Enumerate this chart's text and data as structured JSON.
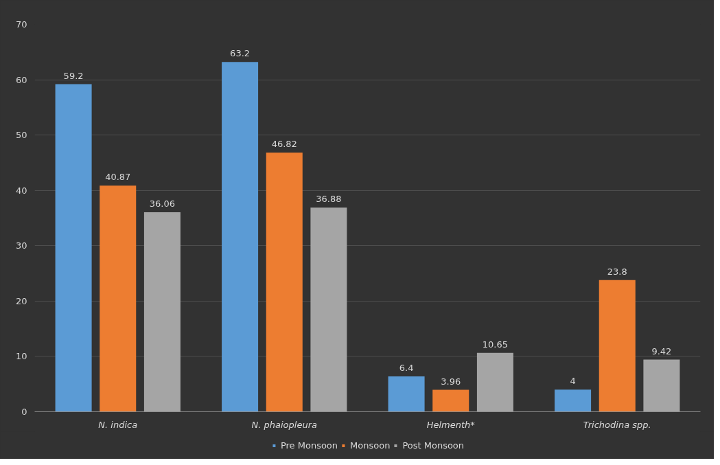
{
  "chart_data": {
    "type": "bar",
    "categories": [
      "N. indica",
      "N. phaiopleura",
      "Helmenth*",
      "Trichodina spp."
    ],
    "series": [
      {
        "name": "Pre Monsoon",
        "color": "#5b9bd5",
        "values": [
          59.2,
          63.2,
          6.4,
          4
        ]
      },
      {
        "name": "Monsoon",
        "color": "#ed7d31",
        "values": [
          40.87,
          46.82,
          3.96,
          23.8
        ]
      },
      {
        "name": "Post Monsoon",
        "color": "#a5a5a5",
        "values": [
          36.06,
          36.88,
          10.65,
          9.42
        ]
      }
    ],
    "ylim": [
      0,
      70
    ],
    "yticks": [
      0,
      10,
      20,
      30,
      40,
      50,
      60,
      70
    ],
    "grid": "y",
    "legend": "bottom",
    "data_labels": true
  }
}
